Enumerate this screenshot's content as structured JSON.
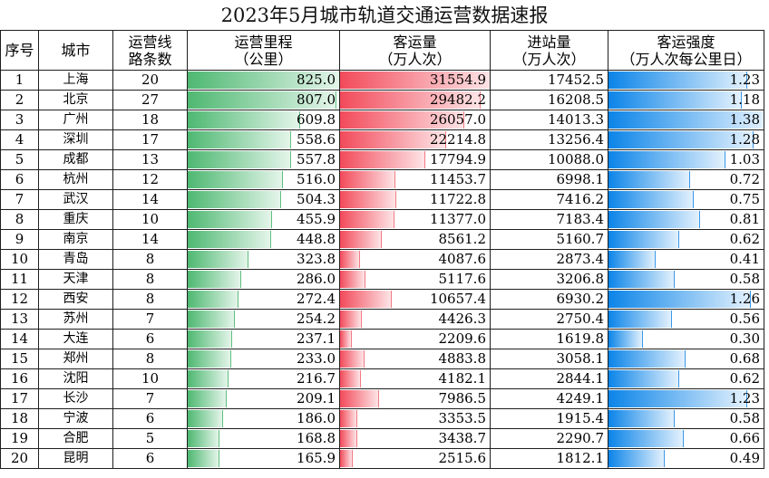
{
  "title": "2023年5月城市轨道交通运营数据速报",
  "headers": {
    "index": "序号",
    "city": "城市",
    "lines": [
      "运营线",
      "路条数"
    ],
    "mileage": [
      "运营里程",
      "（公里）"
    ],
    "ridership": [
      "客运量",
      "（万人次）"
    ],
    "entries": [
      "进站量",
      "（万人次）"
    ],
    "intensity": [
      "客运强度",
      "（万人次每公里日）"
    ]
  },
  "colors": {
    "mileage_bar": "#4eb871",
    "ridership_bar": "#f24a5a",
    "intensity_bar": "#0b84e8"
  },
  "rows": [
    {
      "idx": "1",
      "city": "上海",
      "lines": "20",
      "mileage": "825.0",
      "ridership": "31554.9",
      "entries": "17452.5",
      "intensity": "1.23"
    },
    {
      "idx": "2",
      "city": "北京",
      "lines": "27",
      "mileage": "807.0",
      "ridership": "29482.2",
      "entries": "16208.5",
      "intensity": "1.18"
    },
    {
      "idx": "3",
      "city": "广州",
      "lines": "18",
      "mileage": "609.8",
      "ridership": "26057.0",
      "entries": "14013.3",
      "intensity": "1.38"
    },
    {
      "idx": "4",
      "city": "深圳",
      "lines": "17",
      "mileage": "558.6",
      "ridership": "22214.8",
      "entries": "13256.4",
      "intensity": "1.28"
    },
    {
      "idx": "5",
      "city": "成都",
      "lines": "13",
      "mileage": "557.8",
      "ridership": "17794.9",
      "entries": "10088.0",
      "intensity": "1.03"
    },
    {
      "idx": "6",
      "city": "杭州",
      "lines": "12",
      "mileage": "516.0",
      "ridership": "11453.7",
      "entries": "6998.1",
      "intensity": "0.72"
    },
    {
      "idx": "7",
      "city": "武汉",
      "lines": "14",
      "mileage": "504.3",
      "ridership": "11722.8",
      "entries": "7416.2",
      "intensity": "0.75"
    },
    {
      "idx": "8",
      "city": "重庆",
      "lines": "10",
      "mileage": "455.9",
      "ridership": "11377.0",
      "entries": "7183.4",
      "intensity": "0.81"
    },
    {
      "idx": "9",
      "city": "南京",
      "lines": "14",
      "mileage": "448.8",
      "ridership": "8561.2",
      "entries": "5160.7",
      "intensity": "0.62"
    },
    {
      "idx": "10",
      "city": "青岛",
      "lines": "8",
      "mileage": "323.8",
      "ridership": "4087.6",
      "entries": "2873.4",
      "intensity": "0.41"
    },
    {
      "idx": "11",
      "city": "天津",
      "lines": "8",
      "mileage": "286.0",
      "ridership": "5117.6",
      "entries": "3206.8",
      "intensity": "0.58"
    },
    {
      "idx": "12",
      "city": "西安",
      "lines": "8",
      "mileage": "272.4",
      "ridership": "10657.4",
      "entries": "6930.2",
      "intensity": "1.26"
    },
    {
      "idx": "13",
      "city": "苏州",
      "lines": "7",
      "mileage": "254.2",
      "ridership": "4426.3",
      "entries": "2750.4",
      "intensity": "0.56"
    },
    {
      "idx": "14",
      "city": "大连",
      "lines": "6",
      "mileage": "237.1",
      "ridership": "2209.6",
      "entries": "1619.8",
      "intensity": "0.30"
    },
    {
      "idx": "15",
      "city": "郑州",
      "lines": "8",
      "mileage": "233.0",
      "ridership": "4883.8",
      "entries": "3058.1",
      "intensity": "0.68"
    },
    {
      "idx": "16",
      "city": "沈阳",
      "lines": "10",
      "mileage": "216.7",
      "ridership": "4182.1",
      "entries": "2844.1",
      "intensity": "0.62"
    },
    {
      "idx": "17",
      "city": "长沙",
      "lines": "7",
      "mileage": "209.1",
      "ridership": "7986.5",
      "entries": "4249.1",
      "intensity": "1.23"
    },
    {
      "idx": "18",
      "city": "宁波",
      "lines": "6",
      "mileage": "186.0",
      "ridership": "3353.5",
      "entries": "1915.4",
      "intensity": "0.58"
    },
    {
      "idx": "19",
      "city": "合肥",
      "lines": "5",
      "mileage": "168.8",
      "ridership": "3438.7",
      "entries": "2290.7",
      "intensity": "0.66"
    },
    {
      "idx": "20",
      "city": "昆明",
      "lines": "6",
      "mileage": "165.9",
      "ridership": "2515.6",
      "entries": "1812.1",
      "intensity": "0.49"
    }
  ]
}
